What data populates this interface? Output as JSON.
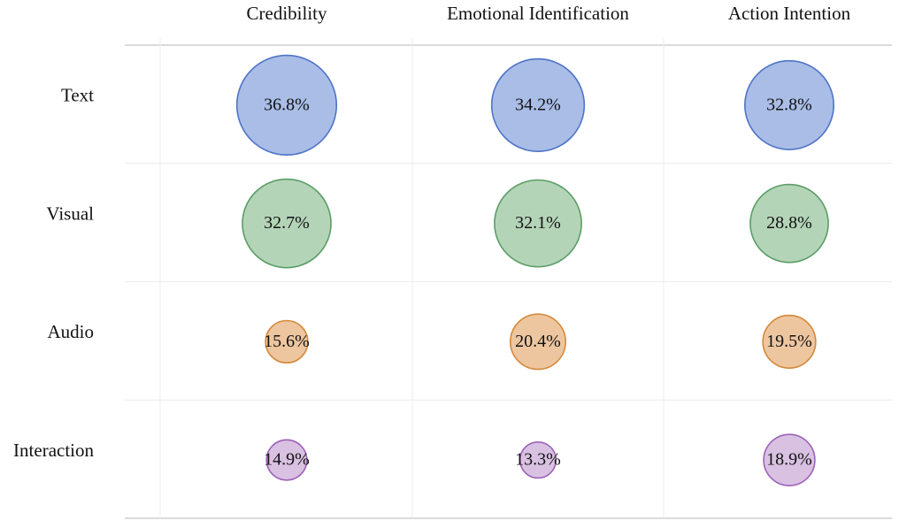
{
  "chart_data": {
    "type": "bubble-matrix",
    "title": "",
    "columns": [
      "Credibility",
      "Emotional Identification",
      "Action Intention"
    ],
    "rows": [
      "Text",
      "Visual",
      "Audio",
      "Interaction"
    ],
    "values": [
      [
        36.8,
        34.2,
        32.8
      ],
      [
        32.7,
        32.1,
        28.8
      ],
      [
        15.6,
        20.4,
        19.5
      ],
      [
        14.9,
        13.3,
        18.9
      ]
    ],
    "labels": [
      [
        "36.8%",
        "34.2%",
        "32.8%"
      ],
      [
        "32.7%",
        "32.1%",
        "28.8%"
      ],
      [
        "15.6%",
        "20.4%",
        "19.5%"
      ],
      [
        "14.9%",
        "13.3%",
        "18.9%"
      ]
    ],
    "row_colors": [
      {
        "fill": "#a9bde6",
        "stroke": "#4f74c8"
      },
      {
        "fill": "#b4d4b8",
        "stroke": "#5b9e66"
      },
      {
        "fill": "#edc6a0",
        "stroke": "#d4893a"
      },
      {
        "fill": "#d9c1e2",
        "stroke": "#9f62b8"
      }
    ],
    "grid": true,
    "legend": "none"
  }
}
